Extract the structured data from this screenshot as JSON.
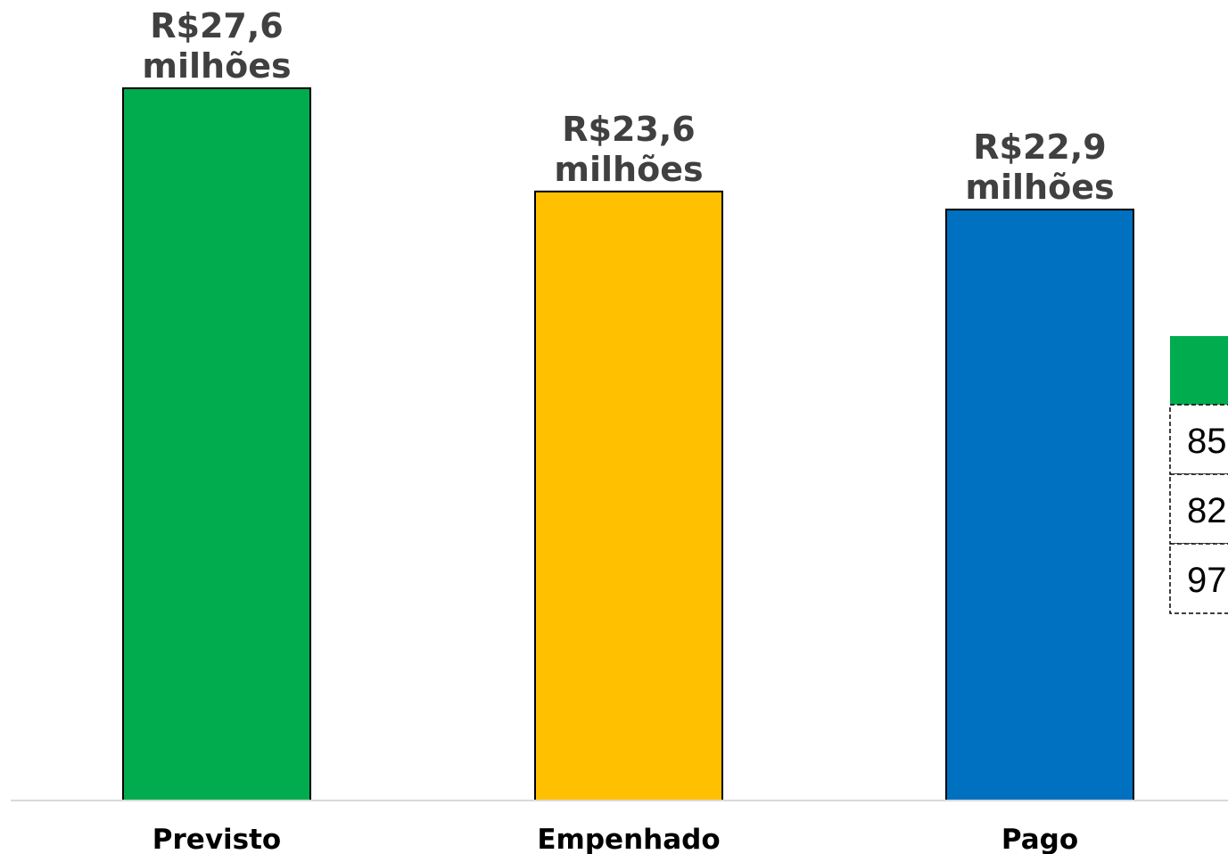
{
  "chart_data": {
    "type": "bar",
    "title": "",
    "xlabel": "",
    "ylabel": "",
    "categories": [
      "Previsto",
      "Empenhado",
      "Pago"
    ],
    "values": [
      27.6,
      23.6,
      22.9
    ],
    "value_labels": [
      [
        "R$27,6",
        "milhões"
      ],
      [
        "R$23,6",
        "milhões"
      ],
      [
        "R$22,9",
        "milhões"
      ]
    ],
    "colors": [
      "#00AC4E",
      "#FFC000",
      "#0070C0"
    ],
    "ylim": [
      0,
      27.6
    ],
    "grid": false,
    "legend": "none"
  },
  "side_panel": {
    "header_color": "#00AC4E",
    "cells": [
      "85",
      "82",
      "97"
    ]
  }
}
